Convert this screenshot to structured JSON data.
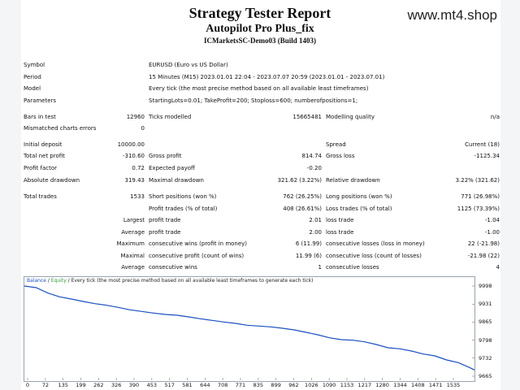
{
  "watermark": "www.mt4.shop",
  "header": {
    "title": "Strategy Tester Report",
    "ea_name": "Autopilot Pro Plus_fix",
    "server": "ICMarketsSC-Demo03 (Build 1403)"
  },
  "info": {
    "symbol_label": "Symbol",
    "symbol": "EURUSD (Euro vs US Dollar)",
    "period_label": "Period",
    "period": "15 Minutes (M15)  2023.01.01 22:04 - 2023.07.07 20:59 (2023.01.01 - 2023.07.01)",
    "model_label": "Model",
    "model": "Every tick (the most precise method based on all available least timeframes)",
    "params_label": "Parameters",
    "params": "StartingLots=0.01; TakeProfit=200; Stoploss=600; numberofpositions=1;"
  },
  "stats": {
    "bars_label": "Bars in test",
    "bars": "12960",
    "ticks_label": "Ticks modelled",
    "ticks": "15665481",
    "quality_label": "Modelling quality",
    "quality": "n/a",
    "mismatch_label": "Mismatched charts errors",
    "mismatch": "0",
    "deposit_label": "Initial deposit",
    "deposit": "10000.00",
    "spread_label": "Spread",
    "spread": "Current (18)",
    "net_label": "Total net profit",
    "net": "-310.60",
    "gp_label": "Gross profit",
    "gp": "814.74",
    "gl_label": "Gross loss",
    "gl": "-1125.34",
    "pf_label": "Profit factor",
    "pf": "0.72",
    "ep_label": "Expected payoff",
    "ep": "-0.20",
    "add_label": "Absolute drawdown",
    "add": "319.43",
    "mdd_label": "Maximal drawdown",
    "mdd": "321.62 (3.22%)",
    "rdd_label": "Relative drawdown",
    "rdd": "3.22% (321.62)",
    "trades_label": "Total trades",
    "trades": "1533",
    "short_label": "Short positions (won %)",
    "short": "762 (26.25%)",
    "long_label": "Long positions (won %)",
    "long": "771 (26.98%)",
    "ptrades_label": "Profit trades (% of total)",
    "ptrades": "408 (26.61%)",
    "ltrades_label": "Loss trades (% of total)",
    "ltrades": "1125 (73.39%)",
    "largest_label": "Largest",
    "lpt_label": "profit trade",
    "lpt": "2.01",
    "llt_label": "loss trade",
    "llt": "-1.04",
    "average_label": "Average",
    "apt_label": "profit trade",
    "apt": "2.00",
    "alt_label": "loss trade",
    "alt": "-1.00",
    "maximum_label": "Maximum",
    "mcw_label": "consecutive wins (profit in money)",
    "mcw": "6 (11.99)",
    "mcl_label": "consecutive losses (loss in money)",
    "mcl": "22 (-21.98)",
    "maximal_label": "Maximal",
    "mcp_label": "consecutive profit (count of wins)",
    "mcp": "11.99 (6)",
    "mclo_label": "consecutive loss (count of losses)",
    "mclo": "-21.98 (22)",
    "avg2_label": "Average",
    "acw_label": "consecutive wins",
    "acw": "1",
    "acl_label": "consecutive losses",
    "acl": "4"
  },
  "chart_data": {
    "type": "line",
    "legend_balance": "Balance",
    "legend_sep": " / ",
    "legend_equity": "Equity",
    "legend_rest": " / Every tick (the most precise method based on all available least timeframes to generate each tick)",
    "x_ticks": [
      "0",
      "72",
      "135",
      "199",
      "262",
      "326",
      "390",
      "453",
      "517",
      "581",
      "644",
      "708",
      "771",
      "835",
      "899",
      "962",
      "1026",
      "1090",
      "1153",
      "1217",
      "1280",
      "1344",
      "1408",
      "1471",
      "1535"
    ],
    "y_ticks": [
      "9998",
      "9931",
      "9865",
      "9798",
      "9732",
      "9665"
    ],
    "ylim": [
      9665,
      9998
    ],
    "xlim": [
      0,
      1535
    ],
    "series": [
      {
        "name": "Balance",
        "color": "#1a4fbf",
        "x": [
          0,
          40,
          80,
          120,
          160,
          200,
          240,
          280,
          320,
          360,
          400,
          440,
          480,
          520,
          560,
          600,
          640,
          680,
          720,
          760,
          800,
          840,
          880,
          920,
          960,
          1000,
          1040,
          1080,
          1120,
          1160,
          1200,
          1240,
          1280,
          1320,
          1360,
          1400,
          1440,
          1480,
          1520,
          1535
        ],
        "y": [
          9998,
          9992,
          9972,
          9958,
          9950,
          9941,
          9933,
          9927,
          9919,
          9910,
          9904,
          9898,
          9893,
          9890,
          9884,
          9877,
          9871,
          9865,
          9860,
          9853,
          9850,
          9847,
          9842,
          9836,
          9827,
          9818,
          9807,
          9800,
          9798,
          9792,
          9782,
          9770,
          9766,
          9758,
          9747,
          9740,
          9725,
          9715,
          9696,
          9688
        ]
      }
    ]
  }
}
